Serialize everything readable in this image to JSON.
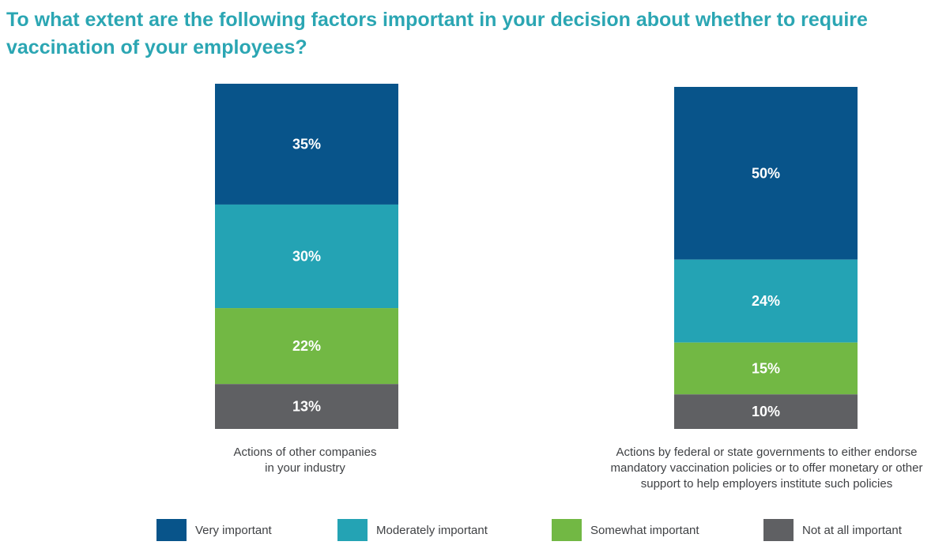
{
  "title": "To what extent are the following factors important in your decision about whether to require vaccination of your employees?",
  "chart_data": {
    "type": "bar",
    "stacked": true,
    "categories": [
      "Actions of other companies in your industry",
      "Actions by federal or state governments to either endorse mandatory vaccination policies or to offer monetary or other support to help employers institute such policies"
    ],
    "category_lines": [
      [
        "Actions of other companies",
        "in your industry"
      ],
      [
        "Actions by federal or state governments to either endorse",
        "mandatory vaccination policies or to offer monetary or other",
        "support to help employers institute such policies"
      ]
    ],
    "series": [
      {
        "name": "Very important",
        "color": "#08548a",
        "values": [
          35,
          50
        ],
        "labels": [
          "35%",
          "50%"
        ]
      },
      {
        "name": "Moderately important",
        "color": "#24a3b4",
        "values": [
          30,
          24
        ],
        "labels": [
          "30%",
          "24%"
        ]
      },
      {
        "name": "Somewhat important",
        "color": "#72b844",
        "values": [
          22,
          15
        ],
        "labels": [
          "22%",
          "15%"
        ]
      },
      {
        "name": "Not at all important",
        "color": "#5f6063",
        "values": [
          13,
          10
        ],
        "labels": [
          "13%",
          "10%"
        ]
      }
    ],
    "legend_position": "bottom",
    "value_unit": "%",
    "grid": false,
    "axes_visible": false
  }
}
